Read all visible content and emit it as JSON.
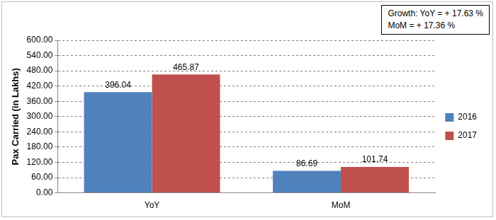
{
  "chart_data": {
    "type": "bar",
    "y_label": "Pax Carried (in Lakhs)",
    "annotations": [
      "Growth: YoY = + 17.63 %",
      "MoM = + 17.36 %"
    ],
    "categories": [
      "YoY",
      "MoM"
    ],
    "series": [
      {
        "name": "2016",
        "color": "#4f81bd",
        "values": [
          396.04,
          86.69
        ]
      },
      {
        "name": "2017",
        "color": "#c0504d",
        "values": [
          465.87,
          101.74
        ]
      }
    ],
    "ylim": [
      0,
      600
    ],
    "yticks": [
      {
        "value": 0,
        "label": "0.00"
      },
      {
        "value": 60,
        "label": "60.00"
      },
      {
        "value": 120,
        "label": "120.00"
      },
      {
        "value": 180,
        "label": "180.00"
      },
      {
        "value": 240,
        "label": "240.00"
      },
      {
        "value": 300,
        "label": "300.00"
      },
      {
        "value": 360,
        "label": "360.00"
      },
      {
        "value": 420,
        "label": "420.00"
      },
      {
        "value": 480,
        "label": "480.00"
      },
      {
        "value": 540,
        "label": "540.00"
      },
      {
        "value": 600,
        "label": "600.00"
      }
    ],
    "grid": true,
    "legend": "right",
    "data_labels": true
  }
}
